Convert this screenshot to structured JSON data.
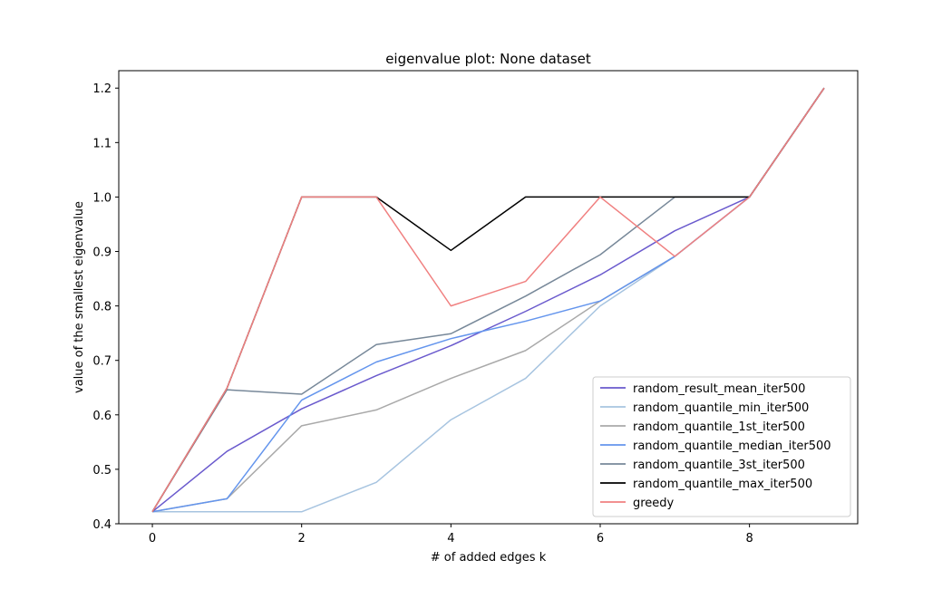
{
  "chart_data": {
    "type": "line",
    "title": "eigenvalue plot: None dataset",
    "xlabel": "# of added edges k",
    "ylabel": "value of the smallest eigenvalue",
    "xlim": [
      -0.45,
      9.45
    ],
    "ylim": [
      0.4,
      1.232
    ],
    "xticks": [
      0,
      2,
      4,
      6,
      8
    ],
    "yticks": [
      0.4,
      0.5,
      0.6,
      0.7,
      0.8,
      0.9,
      1.0,
      1.1,
      1.2
    ],
    "ytick_labels": [
      "0.4",
      "0.5",
      "0.6",
      "0.7",
      "0.8",
      "0.9",
      "1.0",
      "1.1",
      "1.2"
    ],
    "legend_position": "lower-right",
    "series": [
      {
        "name": "random_result_mean_iter500",
        "color": "#6a5acd",
        "x": [
          0,
          1,
          2,
          3,
          4,
          5,
          6,
          7,
          8,
          9
        ],
        "values": [
          0.422,
          0.533,
          0.611,
          0.672,
          0.727,
          0.79,
          0.857,
          0.938,
          1.0,
          1.2
        ]
      },
      {
        "name": "random_quantile_min_iter500",
        "color": "#a7c4e0",
        "x": [
          0,
          1,
          2,
          3,
          4,
          5,
          6,
          7,
          8,
          9
        ],
        "values": [
          0.422,
          0.422,
          0.422,
          0.476,
          0.591,
          0.667,
          0.8,
          0.891,
          1.0,
          1.2
        ]
      },
      {
        "name": "random_quantile_1st_iter500",
        "color": "#a9a9a9",
        "x": [
          0,
          1,
          2,
          3,
          4,
          5,
          6,
          7,
          8,
          9
        ],
        "values": [
          0.422,
          0.446,
          0.58,
          0.609,
          0.667,
          0.718,
          0.809,
          0.891,
          1.0,
          1.2
        ]
      },
      {
        "name": "random_quantile_median_iter500",
        "color": "#6495ed",
        "x": [
          0,
          1,
          2,
          3,
          4,
          5,
          6,
          7,
          8,
          9
        ],
        "values": [
          0.422,
          0.446,
          0.627,
          0.697,
          0.74,
          0.772,
          0.809,
          0.891,
          1.0,
          1.2
        ]
      },
      {
        "name": "random_quantile_3st_iter500",
        "color": "#778899",
        "x": [
          0,
          1,
          2,
          3,
          4,
          5,
          6,
          7,
          8,
          9
        ],
        "values": [
          0.422,
          0.646,
          0.638,
          0.729,
          0.749,
          0.818,
          0.894,
          1.0,
          1.0,
          1.2
        ]
      },
      {
        "name": "random_quantile_max_iter500",
        "color": "#000000",
        "x": [
          0,
          1,
          2,
          3,
          4,
          5,
          6,
          7,
          8,
          9
        ],
        "values": [
          0.422,
          0.649,
          1.0,
          1.0,
          0.902,
          1.0,
          1.0,
          1.0,
          1.0,
          1.2
        ]
      },
      {
        "name": "greedy",
        "color": "#f08080",
        "x": [
          0,
          1,
          2,
          3,
          4,
          5,
          6,
          7,
          8,
          9
        ],
        "values": [
          0.422,
          0.649,
          1.0,
          1.0,
          0.8,
          0.845,
          1.0,
          0.891,
          1.0,
          1.2
        ]
      }
    ]
  }
}
